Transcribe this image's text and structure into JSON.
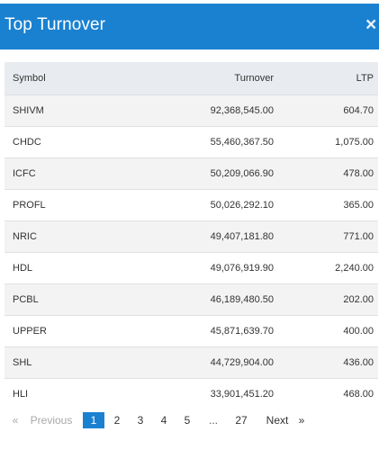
{
  "modal": {
    "title": "Top Turnover",
    "close_icon": "×"
  },
  "table": {
    "headers": {
      "symbol": "Symbol",
      "turnover": "Turnover",
      "ltp": "LTP"
    },
    "rows": [
      {
        "symbol": "SHIVM",
        "turnover": "92,368,545.00",
        "ltp": "604.70"
      },
      {
        "symbol": "CHDC",
        "turnover": "55,460,367.50",
        "ltp": "1,075.00"
      },
      {
        "symbol": "ICFC",
        "turnover": "50,209,066.90",
        "ltp": "478.00"
      },
      {
        "symbol": "PROFL",
        "turnover": "50,026,292.10",
        "ltp": "365.00"
      },
      {
        "symbol": "NRIC",
        "turnover": "49,407,181.80",
        "ltp": "771.00"
      },
      {
        "symbol": "HDL",
        "turnover": "49,076,919.90",
        "ltp": "2,240.00"
      },
      {
        "symbol": "PCBL",
        "turnover": "46,189,480.50",
        "ltp": "202.00"
      },
      {
        "symbol": "UPPER",
        "turnover": "45,871,639.70",
        "ltp": "400.00"
      },
      {
        "symbol": "SHL",
        "turnover": "44,729,904.00",
        "ltp": "436.00"
      },
      {
        "symbol": "HLI",
        "turnover": "33,901,451.20",
        "ltp": "468.00"
      }
    ]
  },
  "pagination": {
    "prev_arrow": "«",
    "previous": "Previous",
    "pages": [
      "1",
      "2",
      "3",
      "4",
      "5",
      "...",
      "27"
    ],
    "active_page": "1",
    "next": "Next",
    "next_arrow": "»"
  },
  "colors": {
    "header": "#1a81d1",
    "active_page": "#1a81d1"
  }
}
